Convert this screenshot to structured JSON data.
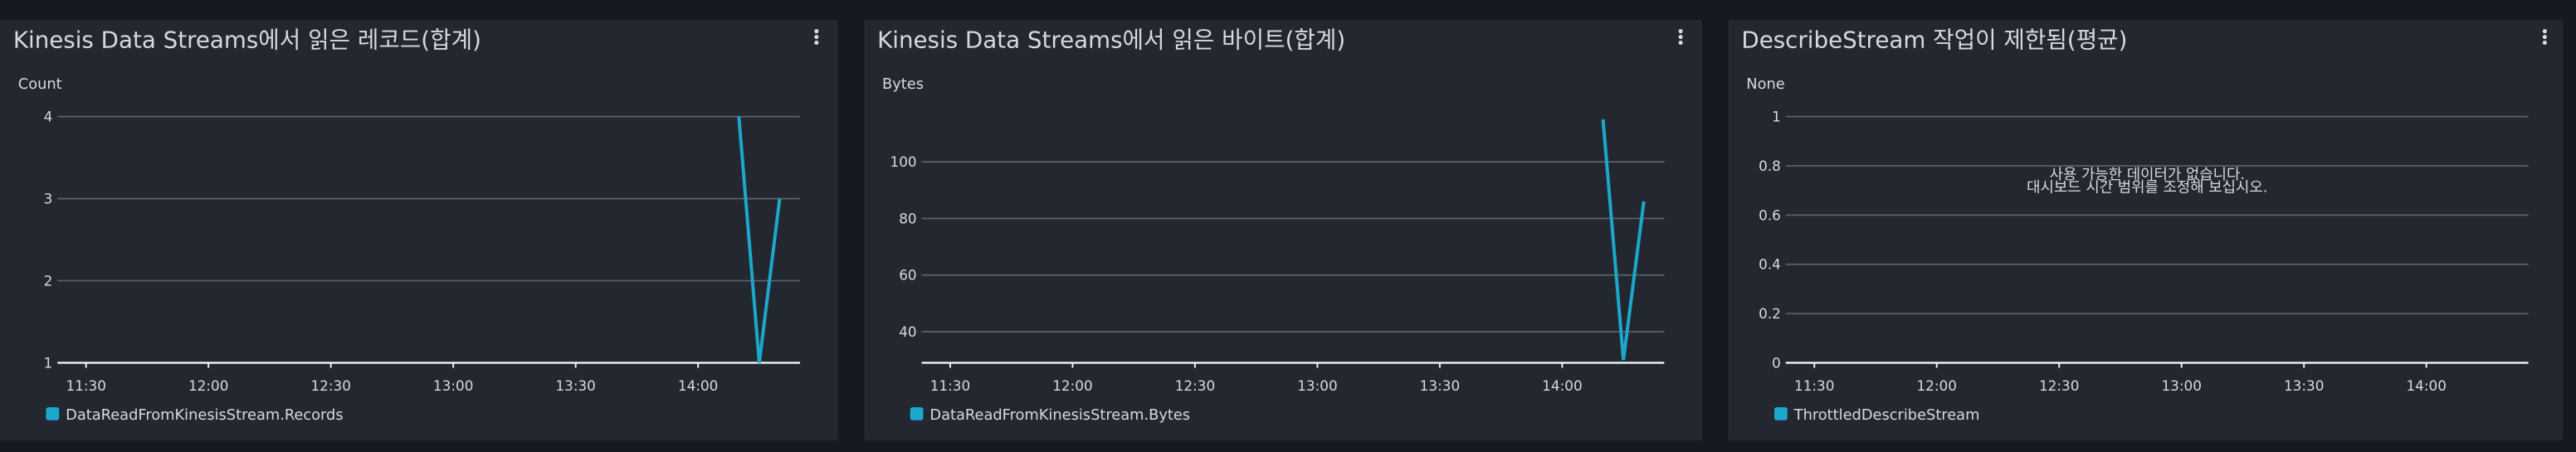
{
  "chart_data": [
    {
      "type": "line",
      "title": "Kinesis Data Streams에서 읽은 레코드(합계)",
      "ylabel": "Count",
      "x": [
        "14:10",
        "14:15",
        "14:20"
      ],
      "series": [
        {
          "name": "DataReadFromKinesisStream.Records",
          "color": "#1ba8cc",
          "values": [
            4,
            1,
            3
          ]
        }
      ],
      "xlim": [
        "11:23",
        "14:25"
      ],
      "xticks": [
        "11:30",
        "12:00",
        "12:30",
        "13:00",
        "13:30",
        "14:00"
      ],
      "ylim": [
        1,
        4
      ],
      "yticks": [
        1,
        2,
        3,
        4
      ],
      "grid": true
    },
    {
      "type": "line",
      "title": "Kinesis Data Streams에서 읽은 바이트(합계)",
      "ylabel": "Bytes",
      "x": [
        "14:10",
        "14:15",
        "14:20"
      ],
      "series": [
        {
          "name": "DataReadFromKinesisStream.Bytes",
          "color": "#1ba8cc",
          "values": [
            115,
            30,
            86
          ]
        }
      ],
      "xlim": [
        "11:23",
        "14:25"
      ],
      "xticks": [
        "11:30",
        "12:00",
        "12:30",
        "13:00",
        "13:30",
        "14:00"
      ],
      "ylim": [
        29,
        116
      ],
      "yticks": [
        40,
        60,
        80,
        100
      ],
      "grid": true
    },
    {
      "type": "line",
      "title": "DescribeStream 작업이 제한됨(평균)",
      "ylabel": "None",
      "x": [],
      "series": [
        {
          "name": "ThrottledDescribeStream",
          "color": "#1ba8cc",
          "values": []
        }
      ],
      "xlim": [
        "11:23",
        "14:25"
      ],
      "xticks": [
        "11:30",
        "12:00",
        "12:30",
        "13:00",
        "13:30",
        "14:00"
      ],
      "ylim": [
        0,
        1
      ],
      "yticks": [
        0,
        0.2,
        0.4,
        0.6,
        0.8,
        1
      ],
      "grid": true,
      "annotations": [
        "사용 가능한 데이터가 없습니다.",
        "대시보드 시간 범위를 조정해 보십시오."
      ]
    }
  ]
}
